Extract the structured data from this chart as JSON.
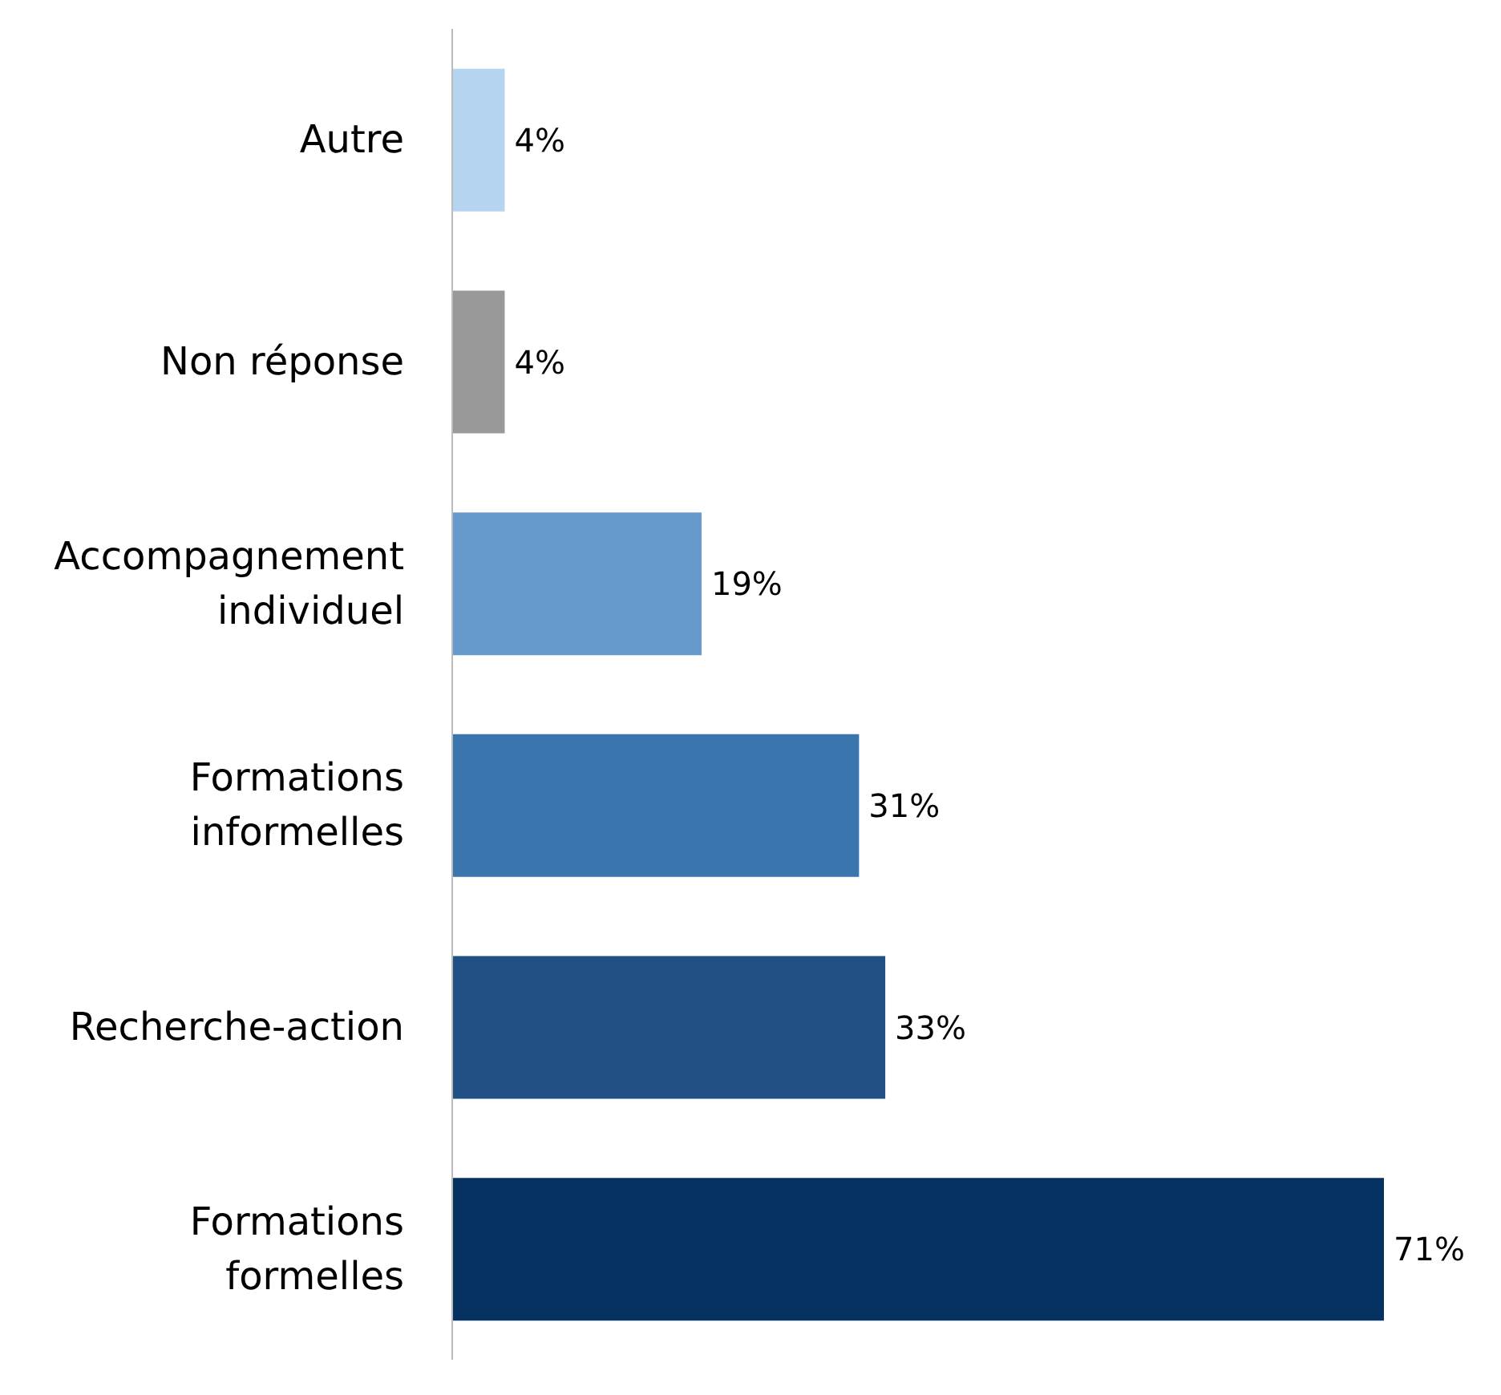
{
  "chart_data": {
    "type": "bar",
    "orientation": "horizontal",
    "categories": [
      "Autre",
      "Non réponse",
      "Accompagnement individuel",
      "Formations informelles",
      "Recherche-action",
      "Formations formelles"
    ],
    "values": [
      4,
      4,
      19,
      31,
      33,
      71
    ],
    "colors": [
      "#b5d4ef",
      "#999999",
      "#6699cc",
      "#3a75ad",
      "#215086",
      "#063262"
    ],
    "value_labels": [
      "4%",
      "4%",
      "19%",
      "31%",
      "33%",
      "71%"
    ],
    "grid": false,
    "legend": false
  }
}
